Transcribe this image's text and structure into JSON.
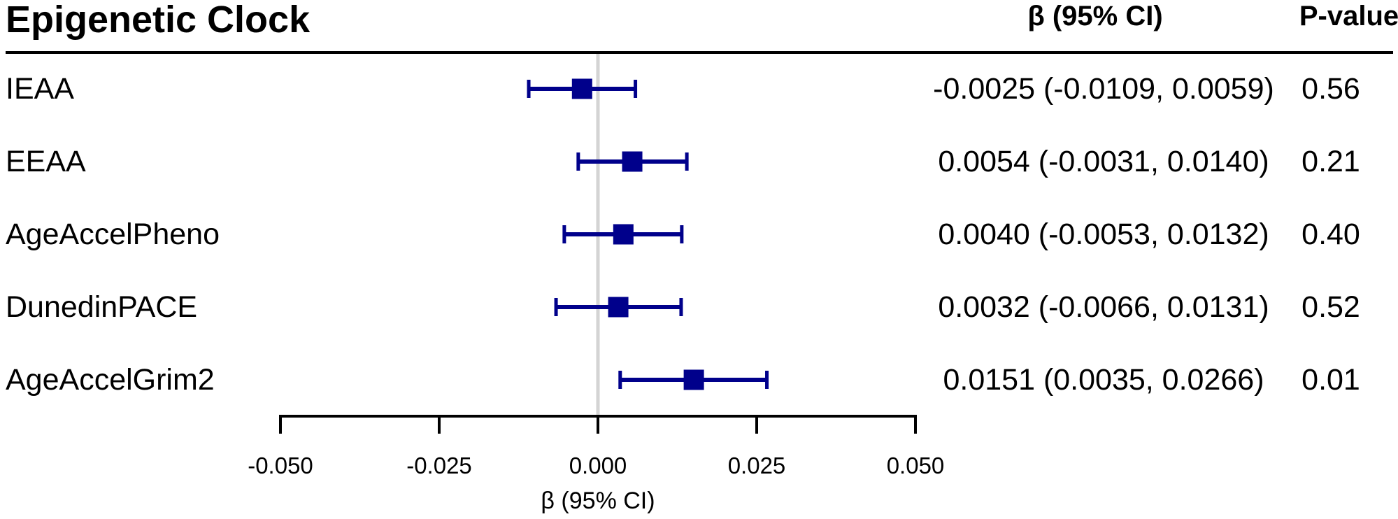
{
  "header": {
    "clock_label": "Epigenetic Clock",
    "beta_label": "β (95% CI)",
    "pvalue_label": "P-value"
  },
  "colors": {
    "marker": "#00008B",
    "ci_line": "#00008B",
    "zero_line": "#d4d4d4",
    "axis_line": "#000000",
    "text": "#000000",
    "background": "#ffffff"
  },
  "chart_data": {
    "type": "forest",
    "xlabel": "β (95% CI)",
    "xlim": [
      -0.05,
      0.05
    ],
    "xticks": [
      -0.05,
      -0.025,
      0,
      0.025,
      0.05
    ],
    "xtick_labels": [
      "-0.050",
      "-0.025",
      "0.000",
      "0.025",
      "0.050"
    ],
    "zero_line_x": 0,
    "rows": [
      {
        "label": "IEAA",
        "beta": -0.0025,
        "ci_low": -0.0109,
        "ci_high": 0.0059,
        "beta_ci_text": "-0.0025 (-0.0109, 0.0059)",
        "p_value": "0.56"
      },
      {
        "label": "EEAA",
        "beta": 0.0054,
        "ci_low": -0.0031,
        "ci_high": 0.014,
        "beta_ci_text": "0.0054 (-0.0031, 0.0140)",
        "p_value": "0.21"
      },
      {
        "label": "AgeAccelPheno",
        "beta": 0.004,
        "ci_low": -0.0053,
        "ci_high": 0.0132,
        "beta_ci_text": "0.0040 (-0.0053, 0.0132)",
        "p_value": "0.40"
      },
      {
        "label": "DunedinPACE",
        "beta": 0.0032,
        "ci_low": -0.0066,
        "ci_high": 0.0131,
        "beta_ci_text": "0.0032 (-0.0066, 0.0131)",
        "p_value": "0.52"
      },
      {
        "label": "AgeAccelGrim2",
        "beta": 0.0151,
        "ci_low": 0.0035,
        "ci_high": 0.0266,
        "beta_ci_text": "0.0151 (0.0035, 0.0266)",
        "p_value": "0.01"
      }
    ]
  }
}
